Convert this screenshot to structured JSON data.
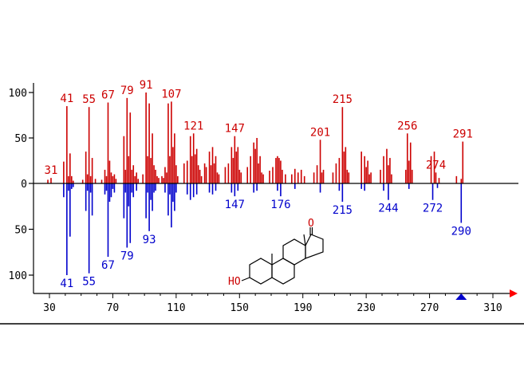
{
  "chart_data": {
    "type": "bar",
    "title": "",
    "xlabel": "",
    "ylabel": "",
    "xlim": [
      22,
      320
    ],
    "ylim": [
      -120,
      110
    ],
    "x_ticks": [
      30,
      70,
      110,
      150,
      190,
      230,
      270,
      310
    ],
    "y_ticks": [
      {
        "value": 100,
        "label": "100"
      },
      {
        "value": 50,
        "label": "50"
      },
      {
        "value": 0,
        "label": "0"
      },
      {
        "value": -50,
        "label": "50"
      },
      {
        "value": -100,
        "label": "100"
      }
    ],
    "colors": {
      "upper": "#cc0000",
      "lower": "#0000cc",
      "axis": "#000000",
      "structure": "#cc0000",
      "marker_up": "#0000cc",
      "marker_right": "#ff0000"
    },
    "series": [
      {
        "values": [
          {
            "x": 29,
            "y": 4
          },
          {
            "x": 31,
            "y": 6
          },
          {
            "x": 39,
            "y": 24
          },
          {
            "x": 41,
            "y": 85
          },
          {
            "x": 42,
            "y": 8
          },
          {
            "x": 43,
            "y": 33
          },
          {
            "x": 44,
            "y": 8
          },
          {
            "x": 45,
            "y": 3
          },
          {
            "x": 51,
            "y": 4
          },
          {
            "x": 53,
            "y": 35
          },
          {
            "x": 54,
            "y": 10
          },
          {
            "x": 55,
            "y": 84
          },
          {
            "x": 56,
            "y": 8
          },
          {
            "x": 57,
            "y": 28
          },
          {
            "x": 59,
            "y": 5
          },
          {
            "x": 63,
            "y": 4
          },
          {
            "x": 65,
            "y": 15
          },
          {
            "x": 66,
            "y": 8
          },
          {
            "x": 67,
            "y": 89
          },
          {
            "x": 68,
            "y": 25
          },
          {
            "x": 69,
            "y": 12
          },
          {
            "x": 70,
            "y": 8
          },
          {
            "x": 71,
            "y": 10
          },
          {
            "x": 72,
            "y": 5
          },
          {
            "x": 77,
            "y": 52
          },
          {
            "x": 78,
            "y": 15
          },
          {
            "x": 79,
            "y": 94
          },
          {
            "x": 80,
            "y": 30
          },
          {
            "x": 81,
            "y": 78
          },
          {
            "x": 82,
            "y": 15
          },
          {
            "x": 83,
            "y": 20
          },
          {
            "x": 84,
            "y": 8
          },
          {
            "x": 85,
            "y": 12
          },
          {
            "x": 86,
            "y": 5
          },
          {
            "x": 89,
            "y": 10
          },
          {
            "x": 91,
            "y": 100
          },
          {
            "x": 92,
            "y": 30
          },
          {
            "x": 93,
            "y": 88
          },
          {
            "x": 94,
            "y": 28
          },
          {
            "x": 95,
            "y": 55
          },
          {
            "x": 96,
            "y": 20
          },
          {
            "x": 97,
            "y": 15
          },
          {
            "x": 98,
            "y": 8
          },
          {
            "x": 99,
            "y": 6
          },
          {
            "x": 101,
            "y": 8
          },
          {
            "x": 102,
            "y": 6
          },
          {
            "x": 103,
            "y": 18
          },
          {
            "x": 104,
            "y": 12
          },
          {
            "x": 105,
            "y": 88
          },
          {
            "x": 106,
            "y": 30
          },
          {
            "x": 107,
            "y": 90
          },
          {
            "x": 108,
            "y": 40
          },
          {
            "x": 109,
            "y": 55
          },
          {
            "x": 110,
            "y": 20
          },
          {
            "x": 111,
            "y": 8
          },
          {
            "x": 115,
            "y": 22
          },
          {
            "x": 117,
            "y": 25
          },
          {
            "x": 119,
            "y": 52
          },
          {
            "x": 120,
            "y": 30
          },
          {
            "x": 121,
            "y": 55
          },
          {
            "x": 122,
            "y": 32
          },
          {
            "x": 123,
            "y": 38
          },
          {
            "x": 124,
            "y": 20
          },
          {
            "x": 125,
            "y": 15
          },
          {
            "x": 126,
            "y": 8
          },
          {
            "x": 128,
            "y": 22
          },
          {
            "x": 129,
            "y": 18
          },
          {
            "x": 131,
            "y": 35
          },
          {
            "x": 132,
            "y": 20
          },
          {
            "x": 133,
            "y": 40
          },
          {
            "x": 134,
            "y": 22
          },
          {
            "x": 135,
            "y": 30
          },
          {
            "x": 136,
            "y": 12
          },
          {
            "x": 137,
            "y": 10
          },
          {
            "x": 141,
            "y": 18
          },
          {
            "x": 143,
            "y": 22
          },
          {
            "x": 145,
            "y": 40
          },
          {
            "x": 146,
            "y": 28
          },
          {
            "x": 147,
            "y": 52
          },
          {
            "x": 148,
            "y": 35
          },
          {
            "x": 149,
            "y": 40
          },
          {
            "x": 150,
            "y": 15
          },
          {
            "x": 151,
            "y": 12
          },
          {
            "x": 155,
            "y": 18
          },
          {
            "x": 157,
            "y": 30
          },
          {
            "x": 159,
            "y": 45
          },
          {
            "x": 160,
            "y": 38
          },
          {
            "x": 161,
            "y": 50
          },
          {
            "x": 162,
            "y": 22
          },
          {
            "x": 163,
            "y": 30
          },
          {
            "x": 164,
            "y": 12
          },
          {
            "x": 165,
            "y": 10
          },
          {
            "x": 169,
            "y": 14
          },
          {
            "x": 171,
            "y": 18
          },
          {
            "x": 173,
            "y": 28
          },
          {
            "x": 174,
            "y": 30
          },
          {
            "x": 175,
            "y": 28
          },
          {
            "x": 176,
            "y": 25
          },
          {
            "x": 177,
            "y": 15
          },
          {
            "x": 179,
            "y": 10
          },
          {
            "x": 183,
            "y": 10
          },
          {
            "x": 185,
            "y": 16
          },
          {
            "x": 187,
            "y": 12
          },
          {
            "x": 189,
            "y": 15
          },
          {
            "x": 191,
            "y": 8
          },
          {
            "x": 197,
            "y": 12
          },
          {
            "x": 199,
            "y": 20
          },
          {
            "x": 201,
            "y": 48
          },
          {
            "x": 202,
            "y": 12
          },
          {
            "x": 203,
            "y": 15
          },
          {
            "x": 209,
            "y": 12
          },
          {
            "x": 211,
            "y": 22
          },
          {
            "x": 213,
            "y": 28
          },
          {
            "x": 215,
            "y": 84
          },
          {
            "x": 216,
            "y": 35
          },
          {
            "x": 217,
            "y": 40
          },
          {
            "x": 218,
            "y": 15
          },
          {
            "x": 219,
            "y": 12
          },
          {
            "x": 227,
            "y": 35
          },
          {
            "x": 229,
            "y": 30
          },
          {
            "x": 230,
            "y": 18
          },
          {
            "x": 231,
            "y": 25
          },
          {
            "x": 232,
            "y": 10
          },
          {
            "x": 233,
            "y": 12
          },
          {
            "x": 239,
            "y": 15
          },
          {
            "x": 241,
            "y": 30
          },
          {
            "x": 243,
            "y": 38
          },
          {
            "x": 244,
            "y": 20
          },
          {
            "x": 245,
            "y": 28
          },
          {
            "x": 246,
            "y": 10
          },
          {
            "x": 255,
            "y": 15
          },
          {
            "x": 256,
            "y": 55
          },
          {
            "x": 257,
            "y": 25
          },
          {
            "x": 258,
            "y": 45
          },
          {
            "x": 259,
            "y": 15
          },
          {
            "x": 271,
            "y": 30
          },
          {
            "x": 273,
            "y": 35
          },
          {
            "x": 274,
            "y": 12
          },
          {
            "x": 276,
            "y": 6
          },
          {
            "x": 287,
            "y": 8
          },
          {
            "x": 290,
            "y": 5
          },
          {
            "x": 291,
            "y": 46
          }
        ],
        "labels": [
          {
            "x": 31,
            "text": "31"
          },
          {
            "x": 41,
            "text": "41"
          },
          {
            "x": 55,
            "text": "55"
          },
          {
            "x": 67,
            "text": "67"
          },
          {
            "x": 79,
            "text": "79"
          },
          {
            "x": 91,
            "text": "91"
          },
          {
            "x": 107,
            "text": "107"
          },
          {
            "x": 121,
            "text": "121"
          },
          {
            "x": 147,
            "text": "147"
          },
          {
            "x": 201,
            "text": "201"
          },
          {
            "x": 215,
            "text": "215"
          },
          {
            "x": 256,
            "text": "256"
          },
          {
            "x": 274,
            "text": "274"
          },
          {
            "x": 291,
            "text": "291"
          }
        ]
      },
      {
        "values": [
          {
            "x": 39,
            "y": -15
          },
          {
            "x": 41,
            "y": -100
          },
          {
            "x": 42,
            "y": -8
          },
          {
            "x": 43,
            "y": -58
          },
          {
            "x": 44,
            "y": -6
          },
          {
            "x": 45,
            "y": -4
          },
          {
            "x": 53,
            "y": -30
          },
          {
            "x": 54,
            "y": -8
          },
          {
            "x": 55,
            "y": -98
          },
          {
            "x": 56,
            "y": -10
          },
          {
            "x": 57,
            "y": -35
          },
          {
            "x": 65,
            "y": -12
          },
          {
            "x": 66,
            "y": -8
          },
          {
            "x": 67,
            "y": -80
          },
          {
            "x": 68,
            "y": -20
          },
          {
            "x": 69,
            "y": -15
          },
          {
            "x": 70,
            "y": -6
          },
          {
            "x": 71,
            "y": -10
          },
          {
            "x": 77,
            "y": -38
          },
          {
            "x": 78,
            "y": -10
          },
          {
            "x": 79,
            "y": -70
          },
          {
            "x": 80,
            "y": -25
          },
          {
            "x": 81,
            "y": -65
          },
          {
            "x": 82,
            "y": -10
          },
          {
            "x": 83,
            "y": -15
          },
          {
            "x": 85,
            "y": -8
          },
          {
            "x": 91,
            "y": -38
          },
          {
            "x": 92,
            "y": -10
          },
          {
            "x": 93,
            "y": -52
          },
          {
            "x": 94,
            "y": -18
          },
          {
            "x": 95,
            "y": -30
          },
          {
            "x": 96,
            "y": -10
          },
          {
            "x": 97,
            "y": -8
          },
          {
            "x": 103,
            "y": -10
          },
          {
            "x": 105,
            "y": -35
          },
          {
            "x": 106,
            "y": -12
          },
          {
            "x": 107,
            "y": -48
          },
          {
            "x": 108,
            "y": -20
          },
          {
            "x": 109,
            "y": -30
          },
          {
            "x": 110,
            "y": -10
          },
          {
            "x": 117,
            "y": -12
          },
          {
            "x": 119,
            "y": -18
          },
          {
            "x": 121,
            "y": -15
          },
          {
            "x": 123,
            "y": -12
          },
          {
            "x": 131,
            "y": -10
          },
          {
            "x": 133,
            "y": -12
          },
          {
            "x": 135,
            "y": -8
          },
          {
            "x": 145,
            "y": -10
          },
          {
            "x": 147,
            "y": -14
          },
          {
            "x": 149,
            "y": -8
          },
          {
            "x": 159,
            "y": -10
          },
          {
            "x": 161,
            "y": -8
          },
          {
            "x": 174,
            "y": -8
          },
          {
            "x": 176,
            "y": -14
          },
          {
            "x": 185,
            "y": -6
          },
          {
            "x": 201,
            "y": -10
          },
          {
            "x": 213,
            "y": -8
          },
          {
            "x": 215,
            "y": -20
          },
          {
            "x": 227,
            "y": -6
          },
          {
            "x": 229,
            "y": -8
          },
          {
            "x": 241,
            "y": -8
          },
          {
            "x": 244,
            "y": -18
          },
          {
            "x": 257,
            "y": -6
          },
          {
            "x": 272,
            "y": -18
          },
          {
            "x": 275,
            "y": -5
          },
          {
            "x": 290,
            "y": -43
          }
        ],
        "labels": [
          {
            "x": 41,
            "text": "41"
          },
          {
            "x": 55,
            "text": "55"
          },
          {
            "x": 67,
            "text": "67"
          },
          {
            "x": 79,
            "text": "79"
          },
          {
            "x": 93,
            "text": "93"
          },
          {
            "x": 147,
            "text": "147"
          },
          {
            "x": 176,
            "text": "176"
          },
          {
            "x": 215,
            "text": "215"
          },
          {
            "x": 244,
            "text": "244"
          },
          {
            "x": 272,
            "text": "272"
          },
          {
            "x": 290,
            "text": "290"
          }
        ]
      }
    ],
    "annotations": [
      {
        "text": "O",
        "role": "ketone-oxygen"
      },
      {
        "text": "HO",
        "role": "hydroxyl-group"
      }
    ],
    "marker_x": 290
  }
}
